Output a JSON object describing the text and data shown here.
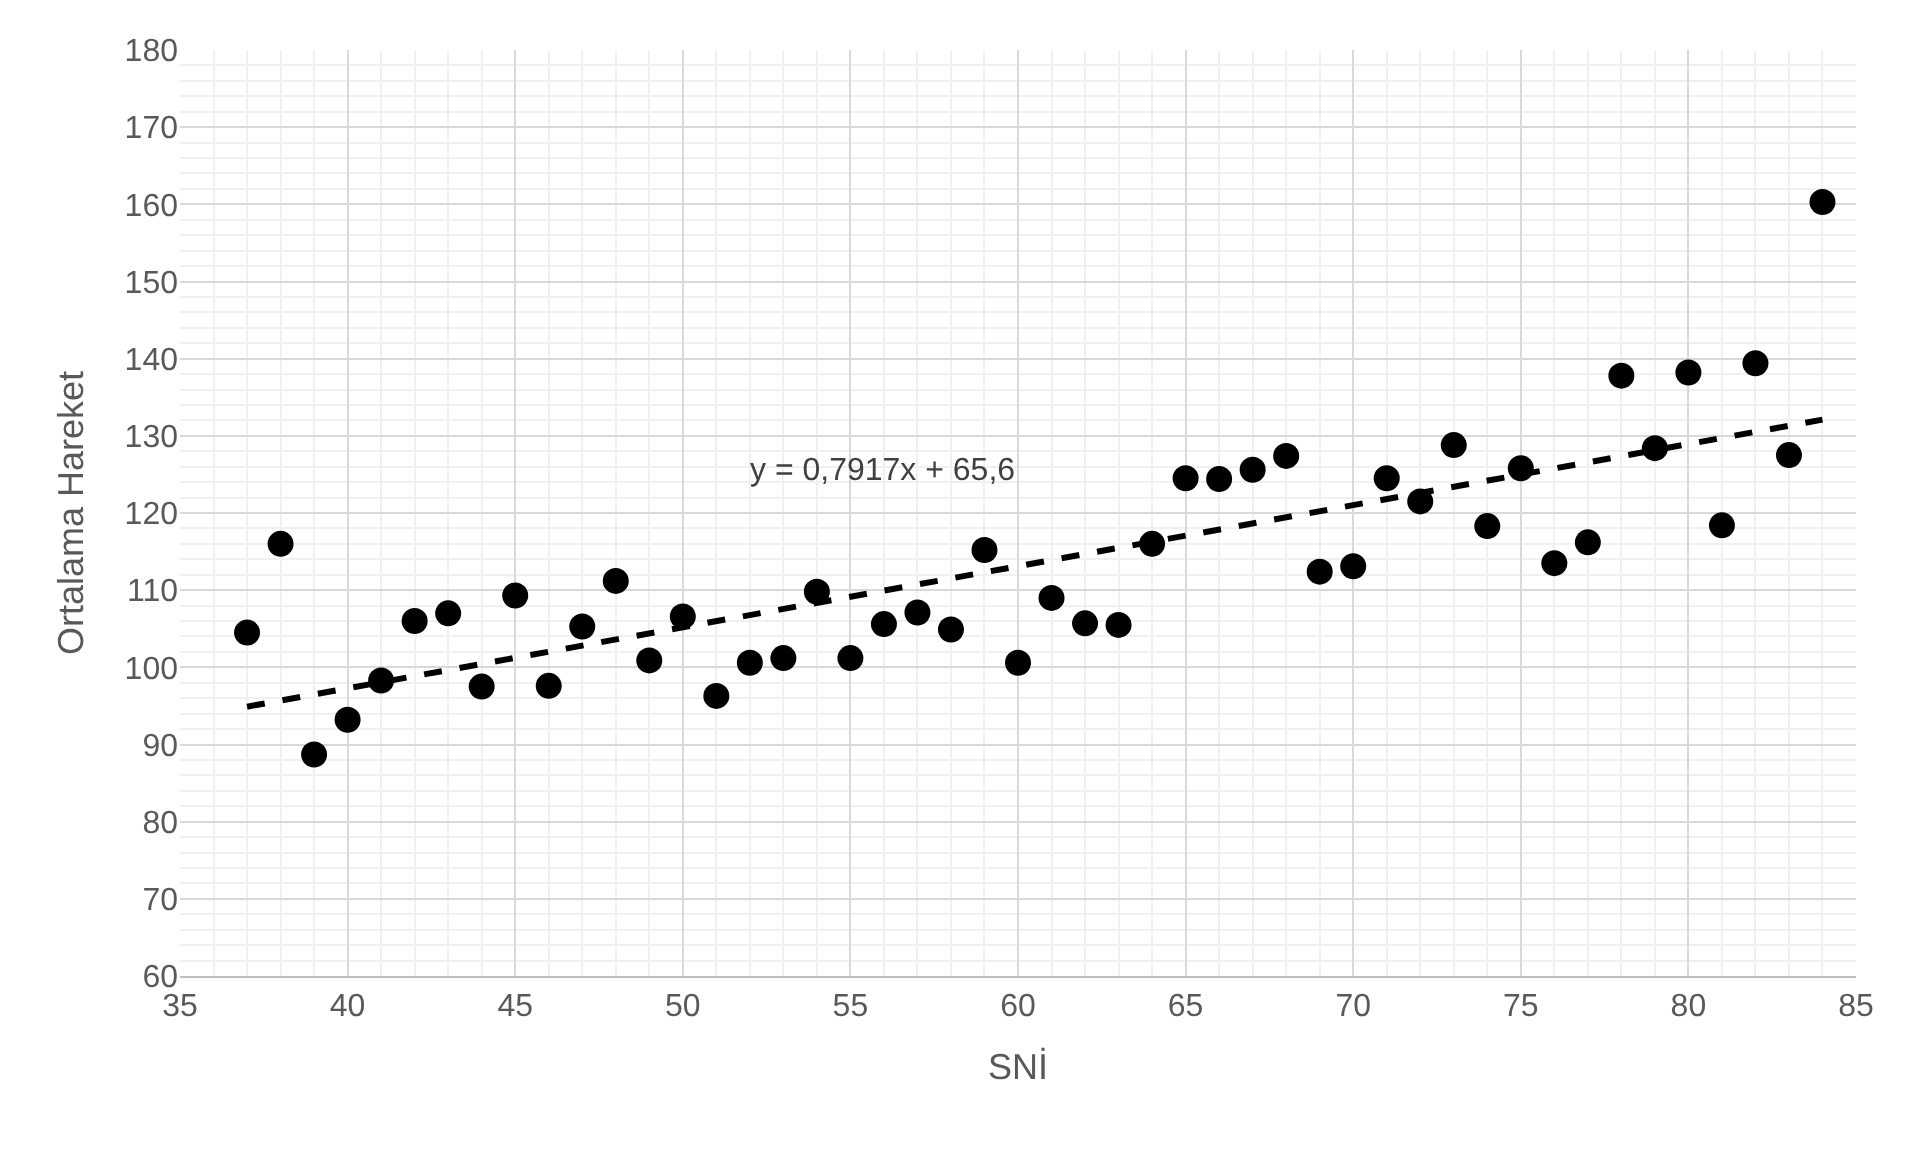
{
  "chart_data": {
    "type": "scatter",
    "xlabel": "SNİ",
    "ylabel": "Ortalama Hareket",
    "xlim": [
      35,
      85
    ],
    "xticks": [
      35,
      40,
      45,
      50,
      55,
      60,
      65,
      70,
      75,
      80,
      85
    ],
    "ylim": [
      60,
      180
    ],
    "yticks": [
      60,
      70,
      80,
      90,
      100,
      110,
      120,
      130,
      140,
      150,
      160,
      170,
      180
    ],
    "grid": true,
    "marker": "circle",
    "series": [
      {
        "color": "#000000",
        "x": [
          37,
          38,
          39,
          40,
          41,
          42,
          43,
          44,
          45,
          46,
          47,
          48,
          49,
          50,
          51,
          52,
          53,
          54,
          55,
          56,
          57,
          58,
          59,
          60,
          61,
          62,
          63,
          64,
          65,
          66,
          67,
          68,
          69,
          70,
          71,
          72,
          73,
          74,
          75,
          76,
          77,
          78,
          79,
          80,
          81,
          82,
          83,
          84
        ],
        "values": [
          104.5,
          116,
          88.7,
          93.2,
          98.3,
          106,
          107,
          97.5,
          109.3,
          97.6,
          105.3,
          111.2,
          100.9,
          106.6,
          96.3,
          100.6,
          101.2,
          109.8,
          101.2,
          105.6,
          107.1,
          104.9,
          115.2,
          100.6,
          109,
          105.7,
          105.5,
          116,
          124.5,
          124.4,
          125.6,
          127.4,
          112.4,
          113.1,
          124.5,
          121.5,
          128.8,
          118.3,
          125.8,
          113.5,
          116.2,
          137.8,
          128.4,
          138.2,
          118.4,
          139.4,
          127.5,
          160.3
        ]
      },
      {
        "type": "line",
        "color": "#000000",
        "line_style": "dashed",
        "marker": "none",
        "x": [
          37,
          84
        ],
        "values": [
          94.9,
          132.1
        ]
      }
    ],
    "annotations": [
      "y = 0,7917x + 65,6"
    ]
  }
}
